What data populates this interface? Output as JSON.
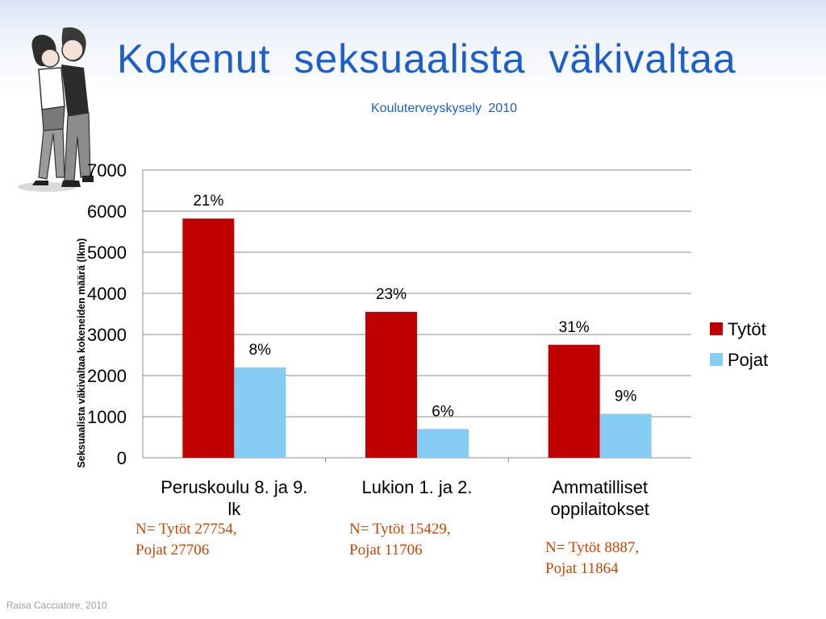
{
  "slide": {
    "title": "Kokenut seksuaalista väkivaltaa",
    "subtitle": "Kouluterveyskysely 2010",
    "footer": "Raisa Cacciatore, 2010",
    "notes": [
      {
        "line1": "N= Tytöt 27754,",
        "line2": "Pojat 27706"
      },
      {
        "line1": "N= Tytöt 15429,",
        "line2": "Pojat 11706"
      },
      {
        "line1": "N= Tytöt 8887,",
        "line2": "Pojat 11864"
      }
    ]
  },
  "chart_data": {
    "type": "bar",
    "title": "",
    "xlabel": "",
    "ylabel": "Seksuaalista väkivaltaa kokeneiden määrä (lkm)",
    "ylim": [
      0,
      7000
    ],
    "yticks": [
      "0",
      "1000",
      "2000",
      "3000",
      "4000",
      "5000",
      "6000",
      "7000"
    ],
    "categories": [
      [
        "Peruskoulu 8. ja 9.",
        "lk"
      ],
      [
        "Lukion 1. ja 2."
      ],
      [
        "Ammatilliset",
        "oppilaitokset"
      ]
    ],
    "series": [
      {
        "name": "Tytöt",
        "color": "#c00000",
        "values": [
          5820,
          3550,
          2750
        ],
        "labels": [
          "21%",
          "23%",
          "31%"
        ]
      },
      {
        "name": "Pojat",
        "color": "#87ccf2",
        "values": [
          2200,
          700,
          1070
        ],
        "labels": [
          "8%",
          "6%",
          "9%"
        ]
      }
    ],
    "grid": true,
    "legend": "right"
  }
}
